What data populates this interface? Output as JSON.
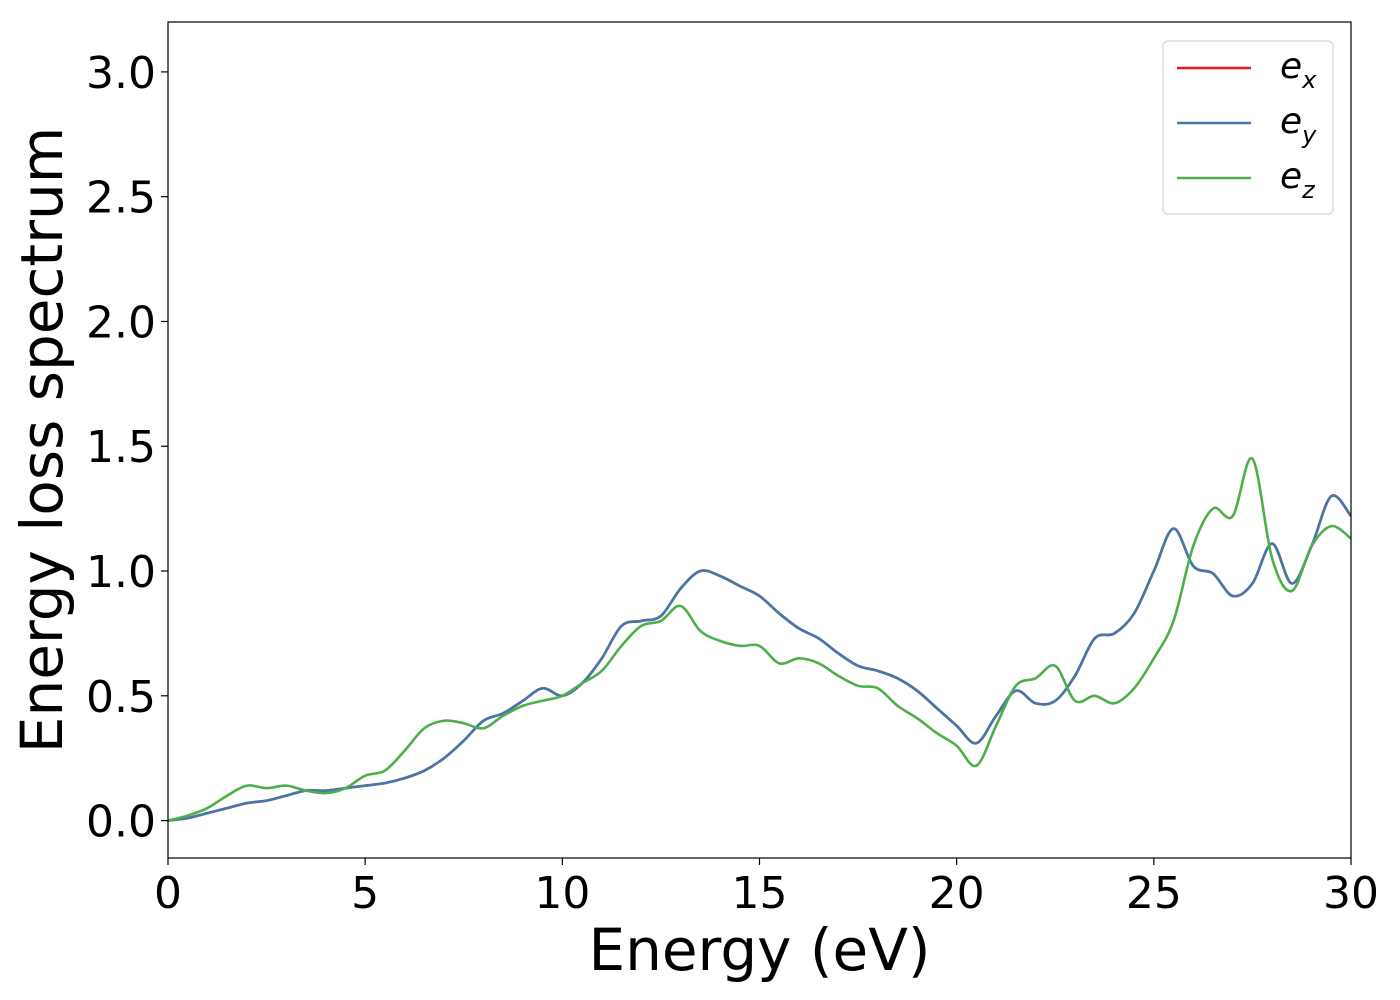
{
  "chart_data": {
    "type": "line",
    "xlabel": "Energy (eV)",
    "ylabel": "Energy loss spectrum",
    "xlim": [
      0,
      30
    ],
    "ylim": [
      -0.15,
      3.2
    ],
    "xticks": [
      "0",
      "5",
      "10",
      "15",
      "20",
      "25",
      "30"
    ],
    "yticks": [
      "0.0",
      "0.5",
      "1.0",
      "1.5",
      "2.0",
      "2.5",
      "3.0"
    ],
    "grid": false,
    "legend_position": "top-right",
    "series": [
      {
        "name": "e",
        "sub": "x",
        "color": "#e41a1c",
        "x": [
          0,
          0.5,
          1,
          1.5,
          2,
          2.5,
          3,
          3.5,
          4,
          4.5,
          5,
          5.5,
          6,
          6.5,
          7,
          7.5,
          8,
          8.5,
          9,
          9.5,
          10,
          10.5,
          11,
          11.5,
          12,
          12.5,
          13,
          13.5,
          14,
          14.5,
          15,
          15.5,
          16,
          16.5,
          17,
          17.5,
          18,
          18.5,
          19,
          19.5,
          20,
          20.5,
          21,
          21.5,
          22,
          22.5,
          23,
          23.5,
          24,
          24.5,
          25,
          25.5,
          26,
          26.5,
          27,
          27.5,
          28,
          28.5,
          29,
          29.5,
          30
        ],
        "values": [
          0.0,
          0.01,
          0.03,
          0.05,
          0.07,
          0.08,
          0.1,
          0.12,
          0.12,
          0.13,
          0.14,
          0.15,
          0.17,
          0.2,
          0.25,
          0.32,
          0.4,
          0.43,
          0.48,
          0.53,
          0.5,
          0.55,
          0.65,
          0.78,
          0.8,
          0.82,
          0.93,
          1.0,
          0.98,
          0.94,
          0.9,
          0.83,
          0.77,
          0.73,
          0.67,
          0.62,
          0.6,
          0.57,
          0.52,
          0.45,
          0.38,
          0.31,
          0.42,
          0.52,
          0.47,
          0.48,
          0.58,
          0.73,
          0.75,
          0.83,
          1.0,
          1.17,
          1.02,
          0.99,
          0.9,
          0.95,
          1.11,
          0.95,
          1.1,
          1.3,
          1.22
        ]
      },
      {
        "name": "e",
        "sub": "y",
        "color": "#4477aa",
        "x": [
          0,
          0.5,
          1,
          1.5,
          2,
          2.5,
          3,
          3.5,
          4,
          4.5,
          5,
          5.5,
          6,
          6.5,
          7,
          7.5,
          8,
          8.5,
          9,
          9.5,
          10,
          10.5,
          11,
          11.5,
          12,
          12.5,
          13,
          13.5,
          14,
          14.5,
          15,
          15.5,
          16,
          16.5,
          17,
          17.5,
          18,
          18.5,
          19,
          19.5,
          20,
          20.5,
          21,
          21.5,
          22,
          22.5,
          23,
          23.5,
          24,
          24.5,
          25,
          25.5,
          26,
          26.5,
          27,
          27.5,
          28,
          28.5,
          29,
          29.5,
          30
        ],
        "values": [
          0.0,
          0.01,
          0.03,
          0.05,
          0.07,
          0.08,
          0.1,
          0.12,
          0.12,
          0.13,
          0.14,
          0.15,
          0.17,
          0.2,
          0.25,
          0.32,
          0.4,
          0.43,
          0.48,
          0.53,
          0.5,
          0.55,
          0.65,
          0.78,
          0.8,
          0.82,
          0.93,
          1.0,
          0.98,
          0.94,
          0.9,
          0.83,
          0.77,
          0.73,
          0.67,
          0.62,
          0.6,
          0.57,
          0.52,
          0.45,
          0.38,
          0.31,
          0.42,
          0.52,
          0.47,
          0.48,
          0.58,
          0.73,
          0.75,
          0.83,
          1.0,
          1.17,
          1.02,
          0.99,
          0.9,
          0.95,
          1.11,
          0.95,
          1.1,
          1.3,
          1.22
        ]
      },
      {
        "name": "e",
        "sub": "z",
        "color": "#4daf4a",
        "x": [
          0,
          0.5,
          1,
          1.5,
          2,
          2.5,
          3,
          3.5,
          4,
          4.5,
          5,
          5.5,
          6,
          6.5,
          7,
          7.5,
          8,
          8.5,
          9,
          9.5,
          10,
          10.5,
          11,
          11.5,
          12,
          12.5,
          13,
          13.5,
          14,
          14.5,
          15,
          15.5,
          16,
          16.5,
          17,
          17.5,
          18,
          18.5,
          19,
          19.5,
          20,
          20.5,
          21,
          21.5,
          22,
          22.5,
          23,
          23.5,
          24,
          24.5,
          25,
          25.5,
          26,
          26.5,
          27,
          27.5,
          28,
          28.5,
          29,
          29.5,
          30
        ],
        "values": [
          0.0,
          0.02,
          0.05,
          0.1,
          0.14,
          0.13,
          0.14,
          0.12,
          0.11,
          0.13,
          0.18,
          0.2,
          0.28,
          0.37,
          0.4,
          0.39,
          0.37,
          0.42,
          0.46,
          0.48,
          0.5,
          0.55,
          0.6,
          0.7,
          0.78,
          0.8,
          0.86,
          0.76,
          0.72,
          0.7,
          0.7,
          0.63,
          0.65,
          0.63,
          0.58,
          0.54,
          0.53,
          0.46,
          0.41,
          0.35,
          0.3,
          0.22,
          0.38,
          0.54,
          0.57,
          0.62,
          0.48,
          0.5,
          0.47,
          0.53,
          0.65,
          0.8,
          1.1,
          1.25,
          1.22,
          1.45,
          1.05,
          0.92,
          1.1,
          1.18,
          1.13
        ]
      }
    ]
  }
}
